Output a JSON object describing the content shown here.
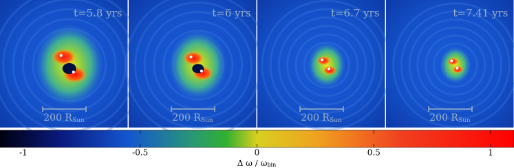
{
  "panels": [
    {
      "time": "t=5.8 yrs"
    },
    {
      "time": "t=6 yrs"
    },
    {
      "time": "t=6.7 yrs"
    },
    {
      "time": "t=7.41 yrs"
    }
  ],
  "scale_bar": {
    "label": "200 R",
    "subscript": "Sun"
  },
  "colorbar": {
    "lim": [
      -1.1,
      1.1
    ],
    "ticks": [
      -1,
      -0.5,
      0,
      0.5,
      1
    ],
    "label": "Δ ω / ω",
    "label_subscript": "bin"
  }
}
